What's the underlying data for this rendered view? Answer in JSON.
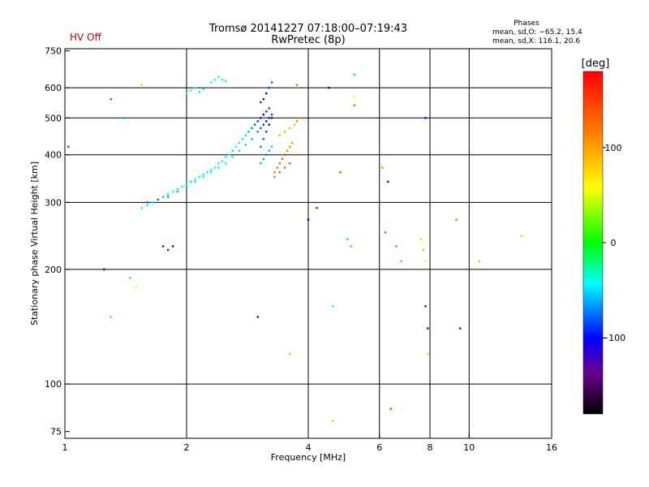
{
  "status_label": "HV Off",
  "status_color": "#cc0000",
  "title_line1": "Tromsø 20141227 07:18:00–07:19:43",
  "title_line2": "RwPretec (8p)",
  "stats": {
    "heading": "Phases",
    "line1": "mean, sd,O: −65.2, 15.4",
    "line2": "mean, sd,X: 116.1, 20.6"
  },
  "colorbar": {
    "label": "[deg]",
    "ticks": [
      {
        "value": 100,
        "label": "100"
      },
      {
        "value": 0,
        "label": "0"
      },
      {
        "value": -100,
        "label": "−100"
      }
    ],
    "range": [
      -180,
      180
    ]
  },
  "chart_data": {
    "type": "scatter",
    "xlabel": "Frequency [MHz]",
    "ylabel": "Stationary phase Virtual Height [km]",
    "x_scale": "log",
    "y_scale": "log",
    "xlim": [
      1,
      16
    ],
    "ylim": [
      72,
      760
    ],
    "x_ticks": [
      {
        "value": 1,
        "label": "1"
      },
      {
        "value": 2,
        "label": "2"
      },
      {
        "value": 4,
        "label": "4"
      },
      {
        "value": 6,
        "label": "6"
      },
      {
        "value": 8,
        "label": "8"
      },
      {
        "value": 10,
        "label": "10"
      },
      {
        "value": 16,
        "label": "16"
      }
    ],
    "y_ticks": [
      {
        "value": 75,
        "label": "75"
      },
      {
        "value": 100,
        "label": "100"
      },
      {
        "value": 200,
        "label": "200"
      },
      {
        "value": 300,
        "label": "300"
      },
      {
        "value": 400,
        "label": "400"
      },
      {
        "value": 500,
        "label": "500"
      },
      {
        "value": 600,
        "label": "600"
      },
      {
        "value": 750,
        "label": "750"
      }
    ],
    "grid_x": [
      2,
      4,
      6,
      8,
      10
    ],
    "grid_y": [
      100,
      200,
      300,
      400,
      500,
      600
    ],
    "grid": true,
    "color_scale": "phase [deg], rainbow from black (-180) to red (+180)",
    "series": [
      {
        "note": "O-trace echoes",
        "x": [
          1.55,
          1.6,
          1.65,
          1.7,
          1.75,
          1.8,
          1.85,
          1.9,
          1.95,
          2.0,
          2.05,
          2.1,
          2.15,
          2.2,
          2.25,
          2.3,
          2.35,
          2.4,
          2.45,
          2.5,
          2.55,
          2.6,
          2.65,
          2.7,
          2.75,
          2.8,
          2.85,
          2.9,
          2.95,
          3.0,
          3.05,
          3.1,
          3.15,
          3.2,
          1.6,
          1.7,
          1.8,
          1.9,
          2.0,
          2.1,
          2.2,
          2.3,
          2.4,
          2.5,
          2.6,
          2.7,
          2.8,
          2.9,
          3.0,
          3.05,
          3.1,
          3.15,
          3.2,
          3.25,
          3.05,
          3.1,
          3.15,
          3.2,
          3.25,
          3.05,
          3.1,
          3.15,
          3.2,
          3.25,
          3.05,
          3.1,
          3.15,
          3.2,
          3.25,
          2.0,
          2.05,
          2.1,
          2.15,
          2.2,
          2.3,
          2.35,
          2.4,
          2.45,
          2.5
        ],
        "y": [
          290,
          295,
          300,
          305,
          310,
          315,
          320,
          325,
          330,
          335,
          340,
          345,
          350,
          355,
          360,
          365,
          370,
          380,
          385,
          395,
          400,
          410,
          420,
          430,
          440,
          450,
          460,
          470,
          480,
          490,
          500,
          510,
          520,
          530,
          300,
          305,
          310,
          320,
          330,
          340,
          350,
          360,
          370,
          380,
          395,
          410,
          425,
          440,
          460,
          470,
          480,
          490,
          500,
          510,
          550,
          560,
          580,
          600,
          620,
          420,
          440,
          460,
          480,
          500,
          380,
          390,
          400,
          410,
          420,
          580,
          590,
          600,
          585,
          595,
          620,
          630,
          640,
          630,
          625
        ],
        "phase": [
          -40,
          -45,
          -50,
          -60,
          -55,
          -45,
          -40,
          -35,
          -40,
          -45,
          -50,
          -40,
          -35,
          -45,
          -50,
          -40,
          -35,
          -30,
          -35,
          -40,
          -45,
          -50,
          -40,
          -35,
          -45,
          -50,
          -60,
          -70,
          -80,
          -90,
          -95,
          -100,
          -90,
          -85,
          -80,
          -75,
          -70,
          -60,
          -55,
          -50,
          -45,
          -40,
          -35,
          -40,
          -45,
          -50,
          -55,
          -60,
          -70,
          -80,
          -90,
          -100,
          -95,
          -85,
          -90,
          -95,
          -100,
          -85,
          -80,
          -75,
          -80,
          -90,
          -100,
          -95,
          -60,
          -65,
          -70,
          -60,
          -55,
          -30,
          -35,
          -40,
          -35,
          -30,
          -40,
          -35,
          -45,
          -40,
          -35
        ]
      },
      {
        "note": "X-trace echoes",
        "x": [
          3.3,
          3.35,
          3.4,
          3.45,
          3.5,
          3.55,
          3.6,
          3.65,
          3.4,
          3.5,
          3.6,
          3.7,
          3.75,
          3.8,
          3.3,
          3.4,
          3.5,
          3.6,
          3.7,
          3.75
        ],
        "y": [
          360,
          370,
          380,
          390,
          400,
          410,
          420,
          430,
          450,
          460,
          470,
          480,
          490,
          500,
          350,
          360,
          370,
          380,
          400,
          610
        ],
        "phase": [
          120,
          125,
          130,
          135,
          140,
          115,
          110,
          105,
          100,
          95,
          90,
          85,
          115,
          110,
          125,
          130,
          135,
          140,
          120,
          130
        ]
      },
      {
        "note": "scattered echoes",
        "x": [
          1.02,
          1.3,
          1.4,
          1.45,
          1.5,
          1.55,
          1.25,
          1.3,
          1.85,
          1.75,
          1.8,
          3.0,
          3.6,
          4.0,
          4.2,
          4.5,
          4.6,
          5.0,
          5.1,
          5.2,
          6.2,
          6.4,
          6.6,
          6.8,
          7.6,
          7.7,
          7.8,
          7.8,
          7.9,
          9.3,
          9.5,
          10.6,
          13.5,
          4.6,
          4.8,
          5.2,
          5.2,
          6.1,
          6.3,
          7.8,
          7.9
        ],
        "y": [
          420,
          560,
          500,
          190,
          180,
          610,
          200,
          150,
          230,
          230,
          225,
          150,
          120,
          270,
          290,
          600,
          80,
          240,
          230,
          650,
          250,
          86,
          230,
          210,
          240,
          225,
          210,
          160,
          140,
          270,
          140,
          210,
          245,
          160,
          360,
          570,
          540,
          370,
          340,
          500,
          120
        ],
        "phase": [
          -80,
          -70,
          -60,
          -20,
          60,
          80,
          -110,
          -40,
          -110,
          -120,
          -90,
          -120,
          90,
          -100,
          -90,
          -100,
          80,
          -50,
          110,
          -20,
          130,
          150,
          130,
          -20,
          40,
          90,
          60,
          -110,
          -120,
          120,
          -120,
          90,
          80,
          -40,
          140,
          60,
          120,
          110,
          -110,
          -100,
          80
        ]
      }
    ]
  }
}
